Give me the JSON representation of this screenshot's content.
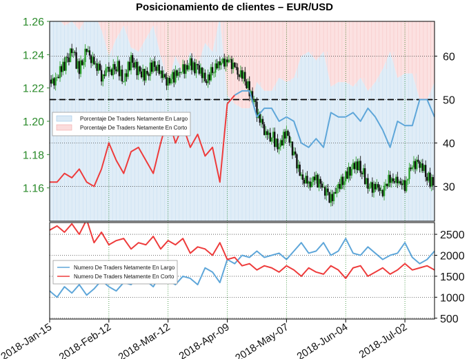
{
  "title": "Posicionamiento de clientes – EUR/USD",
  "colors": {
    "long": "#5ea6d9",
    "short": "#ee3b3b",
    "price_axis": "#2a8a2a",
    "candle_up": "#2fa02f",
    "candle_down": "#111111",
    "long_fill": "#dbeaf6",
    "short_fill": "#fbdcdc"
  },
  "chart_data": [
    {
      "type": "line",
      "panel": "top",
      "title": "Posicionamiento de clientes – EUR/USD",
      "x_tick_labels": [
        "2018-Jan-15",
        "2018-Feb-12",
        "2018-Mar-12",
        "2018-Apr-09",
        "2018-May-07",
        "2018-Jun-04",
        "2018-Jul-02"
      ],
      "left_axis": {
        "label": "",
        "ticks": [
          "1.16",
          "1.18",
          "1.20",
          "1.22",
          "1.24",
          "1.26"
        ],
        "ylim": [
          1.14,
          1.26
        ]
      },
      "right_axis": {
        "label": "",
        "ticks": [
          "30",
          "40",
          "50",
          "60"
        ],
        "ylim": [
          22,
          68
        ]
      },
      "reference_line": 50,
      "legend": {
        "placement": "left",
        "entries": [
          "Porcentaje De Traders Netamente En Largo",
          "Porcentaje De Traders Netamente En Corto"
        ]
      },
      "price_series": {
        "name": "EUR/USD",
        "weekly_close": [
          1.222,
          1.236,
          1.242,
          1.228,
          1.232,
          1.241,
          1.231,
          1.226,
          1.234,
          1.222,
          1.236,
          1.235,
          1.225,
          1.232,
          1.24,
          1.238,
          1.228,
          1.209,
          1.195,
          1.185,
          1.171,
          1.175,
          1.166,
          1.157,
          1.164,
          1.176,
          1.182,
          1.168,
          1.163,
          1.167,
          1.174,
          1.16
        ],
        "hourly_curve": [
          [
            0,
            1.225
          ],
          [
            0.5,
            1.229
          ],
          [
            1,
            1.236
          ],
          [
            1.5,
            1.245
          ],
          [
            2,
            1.232
          ],
          [
            2.5,
            1.245
          ],
          [
            3,
            1.238
          ],
          [
            3.5,
            1.229
          ],
          [
            4,
            1.232
          ],
          [
            4.5,
            1.236
          ],
          [
            5,
            1.228
          ],
          [
            5.5,
            1.238
          ],
          [
            6,
            1.232
          ],
          [
            6.5,
            1.23
          ],
          [
            7,
            1.236
          ],
          [
            7.5,
            1.232
          ],
          [
            8,
            1.225
          ],
          [
            8.5,
            1.23
          ],
          [
            9,
            1.233
          ],
          [
            9.5,
            1.237
          ],
          [
            10,
            1.232
          ],
          [
            10.5,
            1.228
          ],
          [
            11,
            1.232
          ],
          [
            11.5,
            1.236
          ],
          [
            12,
            1.238
          ],
          [
            12.5,
            1.235
          ],
          [
            13,
            1.231
          ],
          [
            13.5,
            1.22
          ],
          [
            14,
            1.208
          ],
          [
            14.5,
            1.196
          ],
          [
            15,
            1.193
          ],
          [
            15.5,
            1.187
          ],
          [
            16,
            1.195
          ],
          [
            16.5,
            1.182
          ],
          [
            17,
            1.17
          ],
          [
            17.5,
            1.165
          ],
          [
            18,
            1.167
          ],
          [
            18.5,
            1.162
          ],
          [
            19,
            1.155
          ],
          [
            19.5,
            1.164
          ],
          [
            20,
            1.17
          ],
          [
            20.5,
            1.174
          ],
          [
            21,
            1.175
          ],
          [
            21.5,
            1.163
          ],
          [
            22,
            1.162
          ],
          [
            22.5,
            1.16
          ],
          [
            23,
            1.168
          ],
          [
            23.5,
            1.166
          ],
          [
            24,
            1.164
          ],
          [
            24.5,
            1.175
          ],
          [
            25,
            1.178
          ],
          [
            25.5,
            1.168
          ],
          [
            26,
            1.165
          ]
        ]
      },
      "series": [
        {
          "name": "Porcentaje De Traders Netamente En Largo",
          "x": [
            0,
            0.5,
            1,
            1.5,
            2,
            2.5,
            3,
            3.5,
            4,
            4.5,
            5,
            5.5,
            6,
            6.5,
            7,
            7.5,
            8,
            8.5,
            9,
            9.5,
            10,
            10.5,
            11,
            11.5,
            12,
            12.5,
            13,
            13.5,
            14,
            14.5,
            15,
            15.5,
            16,
            16.5,
            17,
            17.5,
            18,
            18.5,
            19,
            19.5,
            20,
            20.5,
            21,
            21.5,
            22,
            22.5,
            23,
            23.5,
            24,
            24.5,
            25,
            25.5,
            26
          ],
          "values": [
            69,
            69,
            67,
            68,
            66,
            69,
            70,
            66,
            60,
            64,
            67,
            62,
            61,
            64,
            67,
            60,
            54,
            60,
            56,
            61,
            58,
            63,
            61,
            69,
            51,
            49,
            48,
            48,
            54,
            52,
            52,
            55,
            54,
            55,
            60,
            61,
            59,
            61,
            53,
            54,
            54,
            53,
            55,
            52,
            54,
            57,
            61,
            55,
            56,
            56,
            50,
            50,
            54
          ]
        },
        {
          "name": "Porcentaje De Traders Netamente En Corto",
          "x": [
            0,
            0.5,
            1,
            1.5,
            2,
            2.5,
            3,
            3.5,
            4,
            4.5,
            5,
            5.5,
            6,
            6.5,
            7,
            7.5,
            8,
            8.5,
            9,
            9.5,
            10,
            10.5,
            11,
            11.5,
            12,
            12.5,
            13,
            13.5,
            14,
            14.5,
            15,
            15.5,
            16,
            16.5,
            17,
            17.5,
            18,
            18.5,
            19,
            19.5,
            20,
            20.5,
            21,
            21.5,
            22,
            22.5,
            23,
            23.5,
            24,
            24.5,
            25,
            25.5,
            26
          ],
          "values": [
            31,
            31,
            33,
            32,
            34,
            31,
            30,
            34,
            40,
            36,
            33,
            38,
            39,
            36,
            33,
            40,
            46,
            40,
            44,
            39,
            42,
            37,
            39,
            31,
            49,
            51,
            52,
            52,
            46,
            48,
            48,
            45,
            46,
            45,
            40,
            39,
            41,
            39,
            47,
            46,
            46,
            47,
            45,
            48,
            46,
            43,
            39,
            45,
            44,
            44,
            50,
            50,
            46
          ]
        }
      ]
    },
    {
      "type": "line",
      "panel": "bottom",
      "x_tick_labels": [
        "2018-Jan-15",
        "2018-Feb-12",
        "2018-Mar-12",
        "2018-Apr-09",
        "2018-May-07",
        "2018-Jun-04",
        "2018-Jul-02"
      ],
      "right_axis": {
        "label": "",
        "ticks": [
          "500",
          "1000",
          "1500",
          "2000",
          "2500"
        ],
        "ylim": [
          480,
          2780
        ]
      },
      "legend": {
        "placement": "left",
        "entries": [
          "Numero De Traders Netamente En Largo",
          "Numero De Traders Netamente En Corto"
        ]
      },
      "series": [
        {
          "name": "Numero De Traders Netamente En Largo",
          "x": [
            0,
            0.5,
            1,
            1.5,
            2,
            2.5,
            3,
            3.5,
            4,
            4.5,
            5,
            5.5,
            6,
            6.5,
            7,
            7.5,
            8,
            8.5,
            9,
            9.5,
            10,
            10.5,
            11,
            11.5,
            12,
            12.5,
            13,
            13.5,
            14,
            14.5,
            15,
            15.5,
            16,
            16.5,
            17,
            17.5,
            18,
            18.5,
            19,
            19.5,
            20,
            20.5,
            21,
            21.5,
            22,
            22.5,
            23,
            23.5,
            24,
            24.5,
            25,
            25.5,
            26
          ],
          "values": [
            1150,
            1000,
            1250,
            1100,
            1300,
            1050,
            1200,
            1400,
            1250,
            1150,
            1350,
            1300,
            1500,
            1400,
            1250,
            1550,
            1400,
            1300,
            1500,
            1450,
            1300,
            1700,
            1600,
            1350,
            1900,
            1800,
            2000,
            1950,
            2100,
            1950,
            2000,
            2050,
            1900,
            2100,
            2300,
            2050,
            2100,
            2300,
            2000,
            2100,
            2400,
            2050,
            2000,
            2200,
            2050,
            1900,
            2000,
            2050,
            2300,
            1950,
            1800,
            1900,
            2100
          ]
        },
        {
          "name": "Numero De Traders Netamente En Corto",
          "x": [
            0,
            0.5,
            1,
            1.5,
            2,
            2.5,
            3,
            3.5,
            4,
            4.5,
            5,
            5.5,
            6,
            6.5,
            7,
            7.5,
            8,
            8.5,
            9,
            9.5,
            10,
            10.5,
            11,
            11.5,
            12,
            12.5,
            13,
            13.5,
            14,
            14.5,
            15,
            15.5,
            16,
            16.5,
            17,
            17.5,
            18,
            18.5,
            19,
            19.5,
            20,
            20.5,
            21,
            21.5,
            22,
            22.5,
            23,
            23.5,
            24,
            24.5,
            25,
            25.5,
            26
          ],
          "values": [
            2600,
            2700,
            2550,
            2750,
            2500,
            2850,
            2300,
            2550,
            2250,
            2350,
            2400,
            2150,
            2300,
            2250,
            2450,
            2150,
            2350,
            2250,
            2400,
            2050,
            2200,
            2150,
            2000,
            2300,
            1900,
            1950,
            1750,
            1800,
            1650,
            1750,
            1700,
            1600,
            1750,
            1650,
            1500,
            1700,
            1600,
            1550,
            1750,
            1650,
            1450,
            1700,
            1750,
            1500,
            1600,
            1700,
            1550,
            1650,
            1800,
            1650,
            1700,
            1750,
            1650
          ]
        }
      ]
    }
  ]
}
